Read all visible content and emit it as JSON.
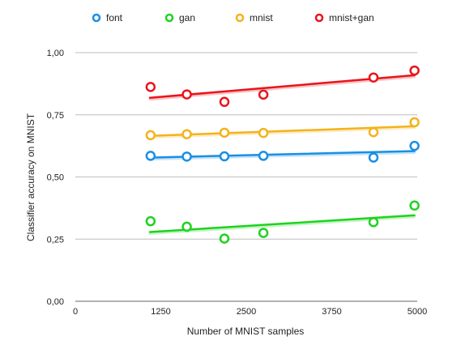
{
  "chart_data": {
    "type": "scatter",
    "title": "",
    "xlabel": "Number of MNIST samples",
    "ylabel": "Classifier accuracy on MNIST",
    "xlim": [
      0,
      5000
    ],
    "ylim": [
      0,
      1.0
    ],
    "x_ticks": [
      0,
      1250,
      2500,
      3750,
      5000
    ],
    "x_tick_labels": [
      "0",
      "1250",
      "2500",
      "3750",
      "5000"
    ],
    "y_ticks": [
      0,
      0.25,
      0.5,
      0.75,
      1.0
    ],
    "y_tick_labels": [
      "0,00",
      "0,25",
      "0,50",
      "0,75",
      "1,00"
    ],
    "grid": "horizontal",
    "legend_position": "top",
    "trendlines": true,
    "x": [
      1100,
      1630,
      2180,
      2750,
      4360,
      4960
    ],
    "series": [
      {
        "name": "font",
        "color": "#1a8fe3",
        "values": [
          0.585,
          0.582,
          0.583,
          0.585,
          0.578,
          0.625
        ]
      },
      {
        "name": "gan",
        "color": "#1fd21f",
        "values": [
          0.322,
          0.3,
          0.252,
          0.275,
          0.318,
          0.385
        ]
      },
      {
        "name": "mnist",
        "color": "#f4b21b",
        "values": [
          0.668,
          0.672,
          0.678,
          0.677,
          0.68,
          0.72
        ]
      },
      {
        "name": "mnist+gan",
        "color": "#e8151b",
        "values": [
          0.862,
          0.832,
          0.802,
          0.831,
          0.9,
          0.928
        ]
      }
    ]
  }
}
